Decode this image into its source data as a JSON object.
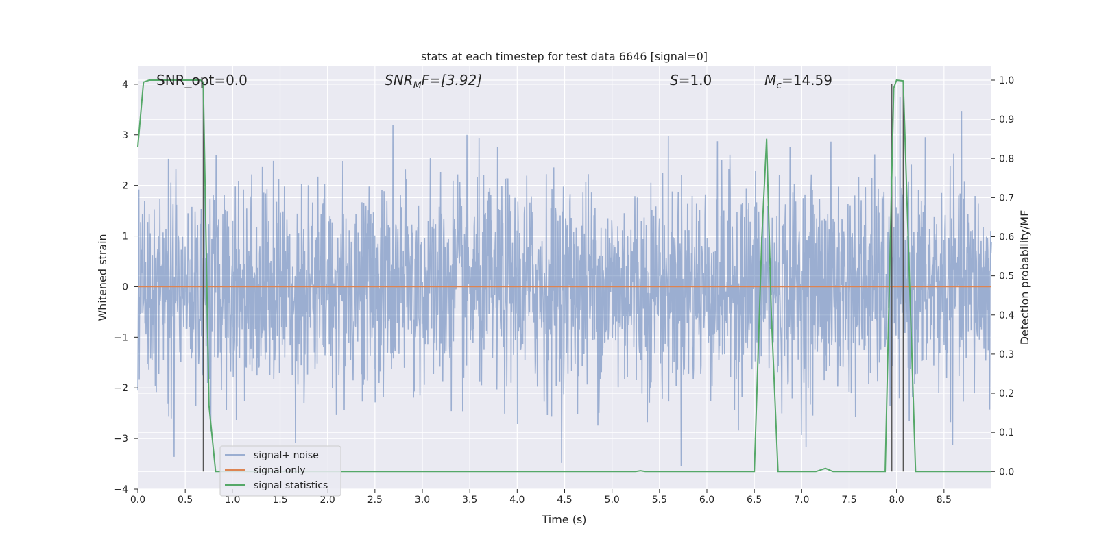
{
  "chart_data": {
    "type": "line",
    "title": "stats at each timestep for test data 6646 [signal=0]",
    "xlabel": "Time (s)",
    "ylabel_left": "Whitened strain",
    "ylabel_right": "Detection probability/MF",
    "xlim": [
      0,
      9
    ],
    "ylim_left": [
      -4,
      4.35
    ],
    "ylim_right": [
      -0.045,
      1.035
    ],
    "x_ticks": [
      "0.0",
      "0.5",
      "1.0",
      "1.5",
      "2.0",
      "2.5",
      "3.0",
      "3.5",
      "4.0",
      "4.5",
      "5.0",
      "5.5",
      "6.0",
      "6.5",
      "7.0",
      "7.5",
      "8.0",
      "8.5"
    ],
    "y_ticks_left": [
      "4",
      "3",
      "2",
      "1",
      "0",
      "−1",
      "−2",
      "−3",
      "−4"
    ],
    "y_ticks_right": [
      "1.0",
      "0.9",
      "0.8",
      "0.7",
      "0.6",
      "0.5",
      "0.4",
      "0.3",
      "0.2",
      "0.1",
      "0.0"
    ],
    "grid": true,
    "annotations": {
      "snr_opt": "SNR_opt=0.0",
      "snr_mf_base": "SNR",
      "snr_mf_sub": "M",
      "snr_mf_rest": "F=[3.92]",
      "s_base": "S",
      "s_rest": "=1.0",
      "mc_base": "M",
      "mc_sub": "c",
      "mc_rest": "=14.59"
    },
    "legend": {
      "placement": "lower-left",
      "entries": [
        "signal+ noise",
        "signal only",
        "signal statistics"
      ]
    },
    "series": [
      {
        "name": "signal+ noise",
        "color": "#4c72b0",
        "envelope": {
          "upper_typical": 1.9,
          "lower_typical": -1.9,
          "max": 4.0,
          "min": -3.65
        }
      },
      {
        "name": "signal only",
        "color": "#dd8452",
        "x": [
          0,
          9
        ],
        "y": [
          0,
          0
        ]
      },
      {
        "name": "signal statistics",
        "color": "#55a868",
        "axis": "right",
        "x": [
          0,
          0.06,
          0.12,
          0.25,
          0.5,
          0.66,
          0.69,
          0.75,
          0.82,
          1.0,
          2.0,
          3.0,
          4.0,
          5.0,
          5.25,
          5.3,
          5.35,
          6.0,
          6.5,
          6.58,
          6.63,
          6.68,
          6.75,
          7.0,
          7.15,
          7.25,
          7.33,
          7.5,
          7.88,
          7.97,
          8.0,
          8.07,
          8.2,
          8.5,
          9.0
        ],
        "y": [
          0.83,
          0.995,
          1.0,
          1.0,
          1.0,
          1.0,
          0.995,
          0.17,
          0.0,
          0.0,
          0.0,
          0.0,
          0.0,
          0.0,
          0.0,
          0.002,
          0.0,
          0.0,
          0.0,
          0.6,
          0.85,
          0.4,
          0.0,
          0.0,
          0.0,
          0.008,
          0.0,
          0.0,
          0.0,
          0.98,
          1.0,
          0.998,
          0.0,
          0.0,
          0.0
        ]
      }
    ],
    "vertical_lines_x": [
      0.69,
      7.95,
      8.07
    ]
  }
}
